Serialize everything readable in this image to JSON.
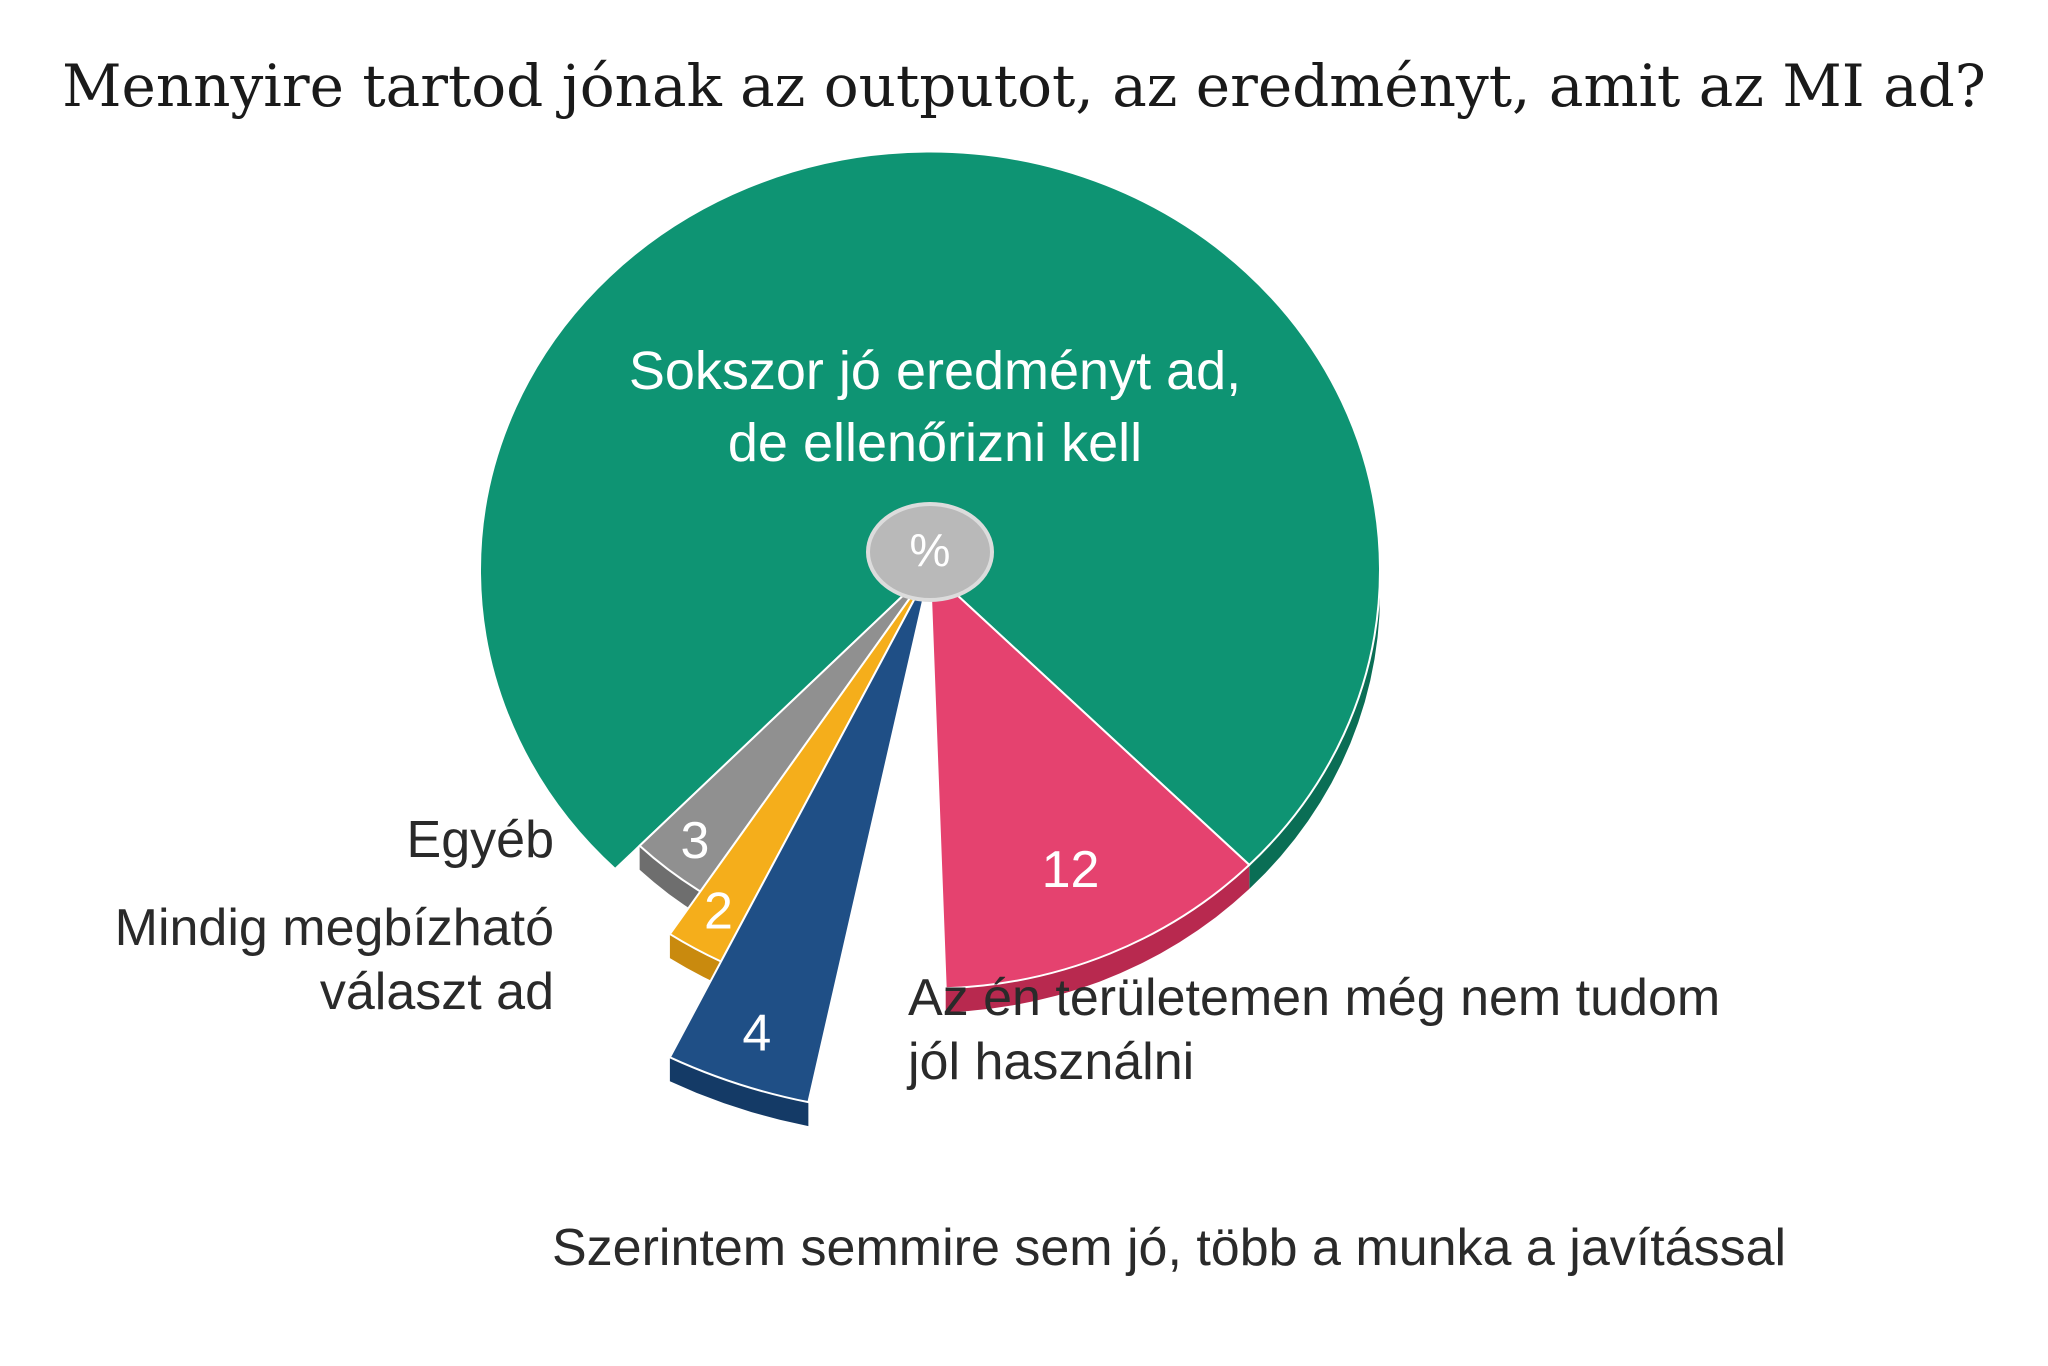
{
  "chart_data": {
    "type": "pie",
    "title": "Mennyire tartod jónak az outputot, az eredményt, amit az MI ad?",
    "unit_label": "%",
    "slices": [
      {
        "name": "Az én területemen még nem tudom jól használni",
        "lines": [
          "Az én területemen még nem tudom",
          "jól használni"
        ],
        "value": 12,
        "value_label": "12",
        "color": "#E5426F",
        "side_color": "#B8294F",
        "exploded": false
      },
      {
        "name": "Szerintem semmire sem jó, több a munka a javítással",
        "lines": [
          "Szerintem semmire sem jó, több a munka a javítással"
        ],
        "value": 4,
        "value_label": "4",
        "color": "#1F4F86",
        "side_color": "#143A66",
        "exploded": true
      },
      {
        "name": "Mindig megbízható választ ad",
        "lines": [
          "Mindig megbízható",
          "választ ad"
        ],
        "value": 2,
        "value_label": "2",
        "color": "#F5AE1B",
        "side_color": "#C98A0E",
        "exploded": true
      },
      {
        "name": "Egyéb",
        "lines": [
          "Egyéb"
        ],
        "value": 3,
        "value_label": "3",
        "color": "#909090",
        "side_color": "#6E6E6E",
        "exploded": true
      },
      {
        "name": "Sokszor jó eredményt ad, de ellenőrizni kell",
        "lines": [
          "Sokszor jó eredményt ad,",
          "de ellenőrizni kell"
        ],
        "value": 79,
        "value_label": "",
        "color": "#0E9473",
        "side_color": "#0A6E55",
        "exploded": false
      }
    ]
  }
}
